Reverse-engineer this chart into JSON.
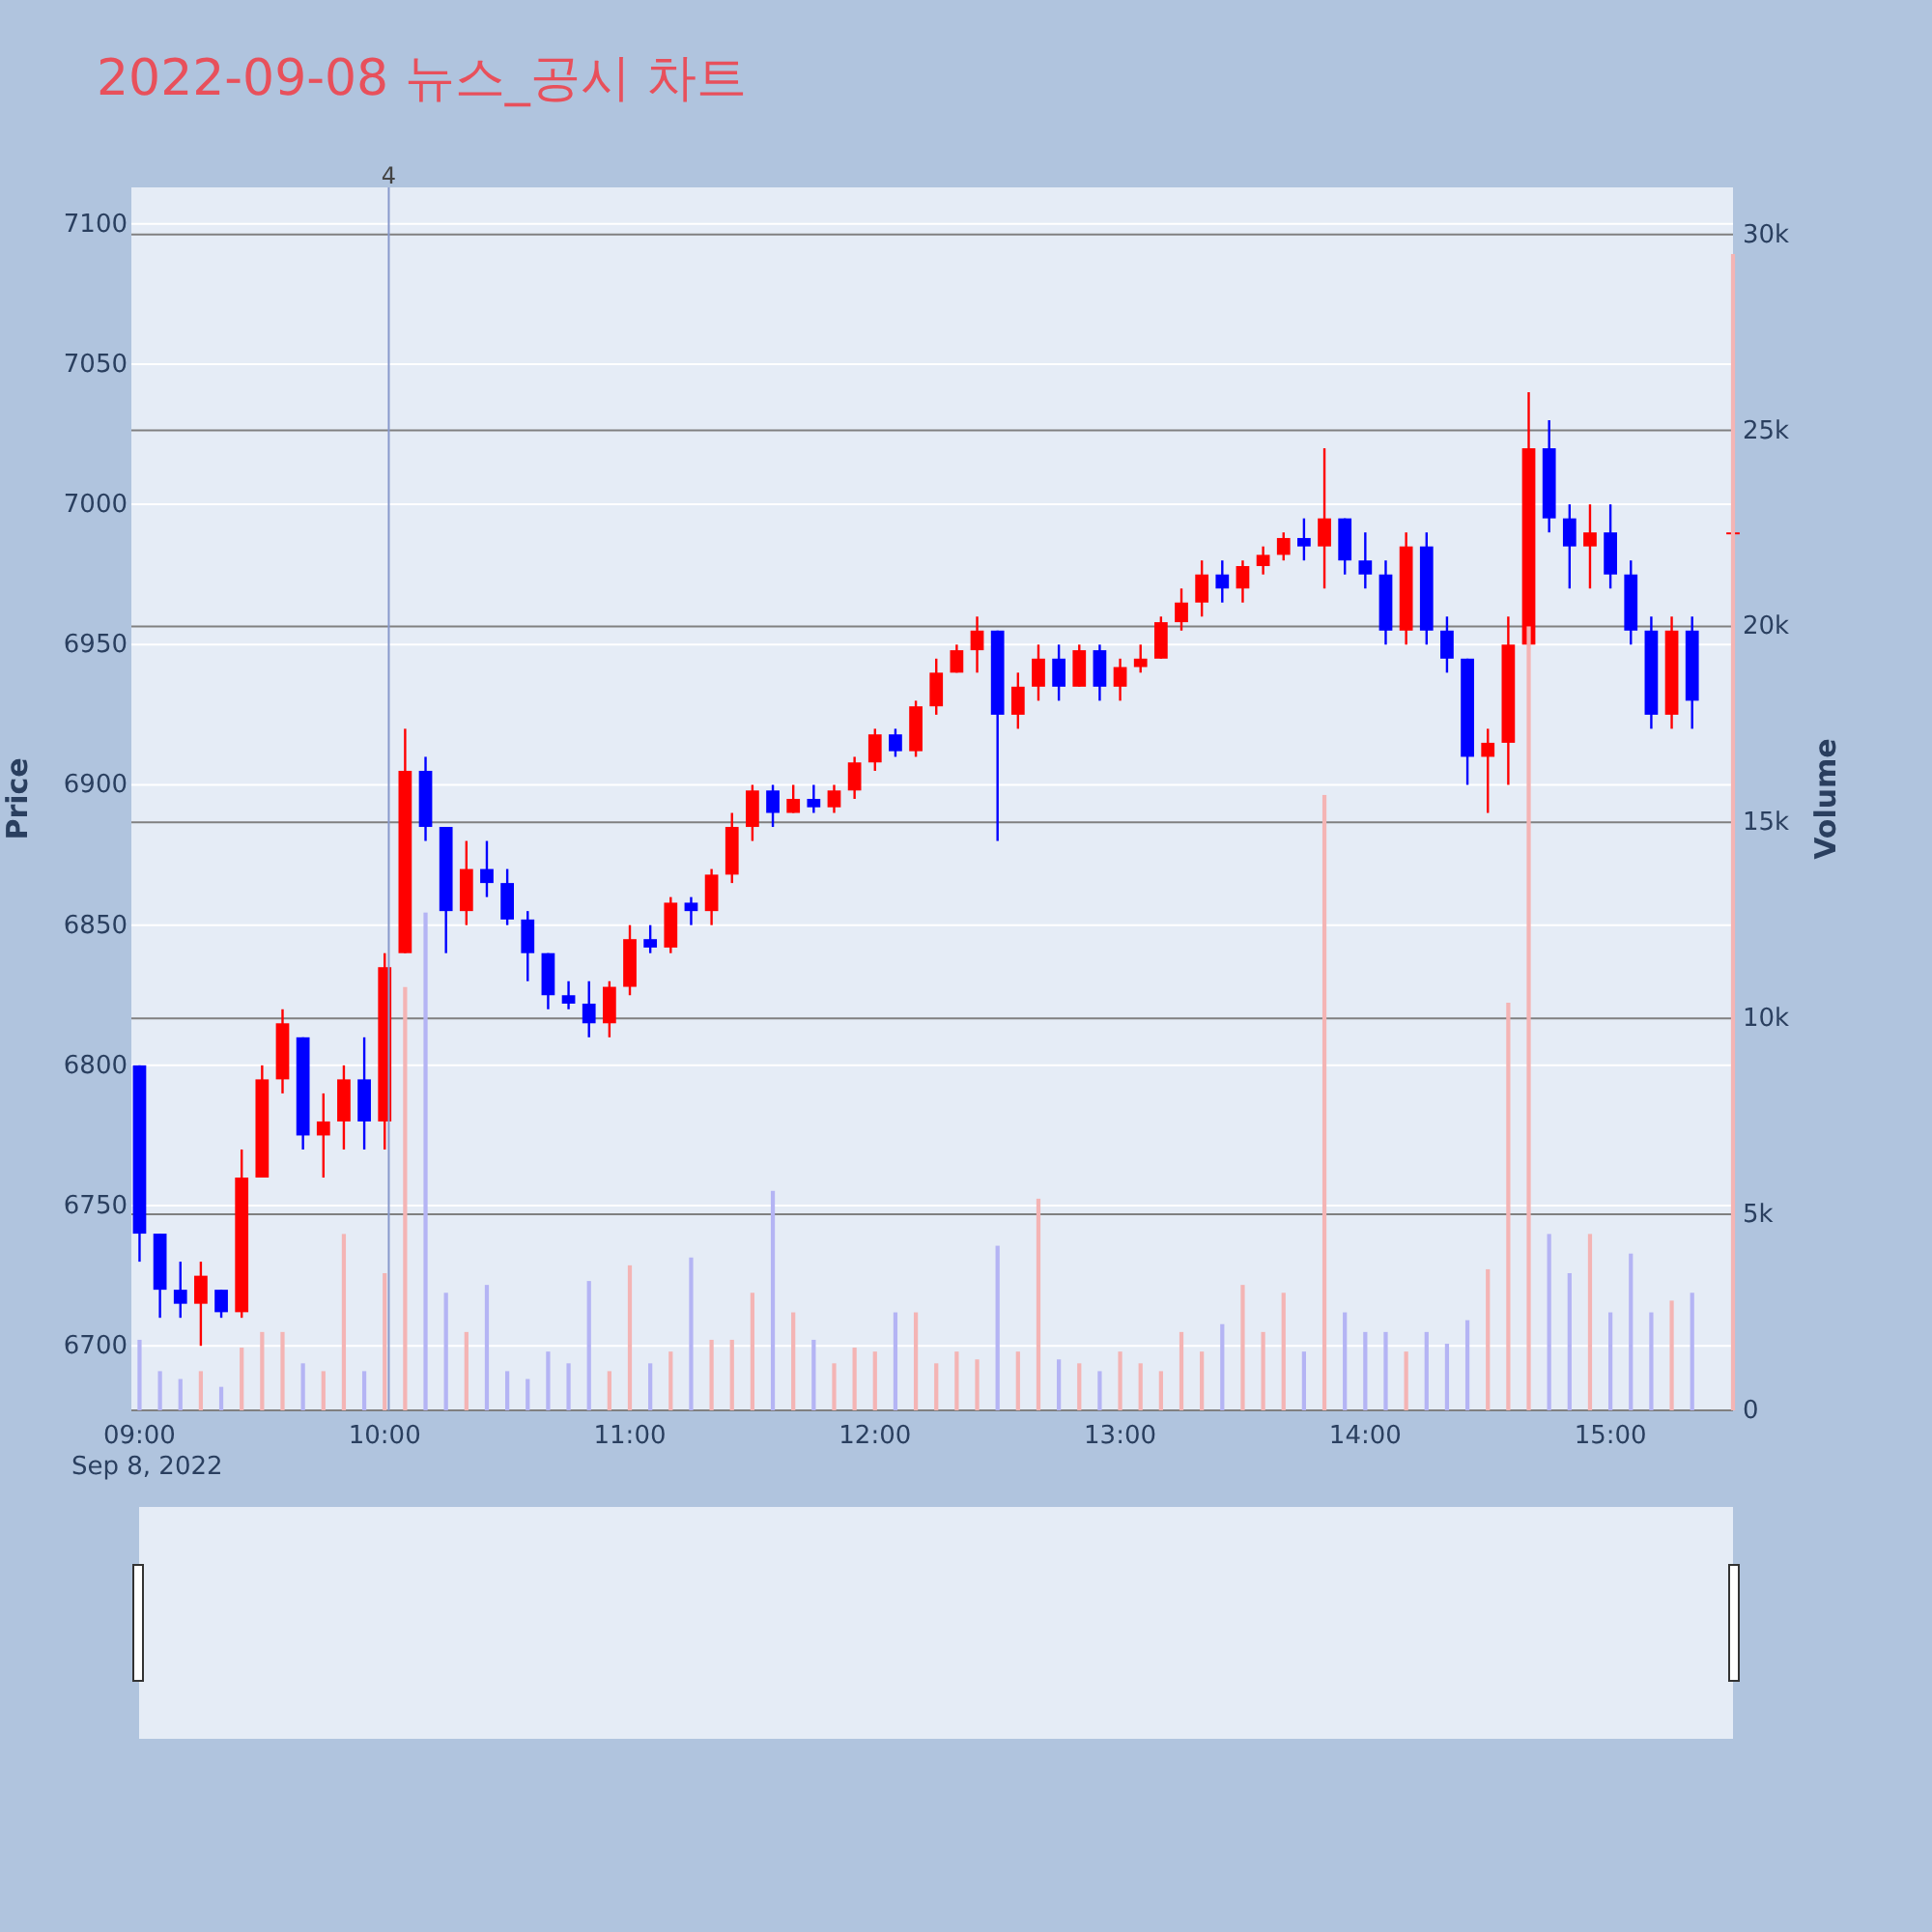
{
  "chart_data": {
    "type": "candlestick",
    "title": "2022-09-08 뉴스_공시 차트",
    "ylabel": "Price",
    "y2label": "Volume",
    "annotations": [
      "Sep 8, 2022"
    ],
    "x": [
      "2022-09-08T09:00",
      "2022-09-08T09:05",
      "2022-09-08T09:10",
      "2022-09-08T09:15",
      "2022-09-08T09:20",
      "2022-09-08T09:25",
      "2022-09-08T09:30",
      "2022-09-08T09:35",
      "2022-09-08T09:40",
      "2022-09-08T09:45",
      "2022-09-08T09:50",
      "2022-09-08T09:55",
      "2022-09-08T10:00",
      "2022-09-08T10:05",
      "2022-09-08T10:10",
      "2022-09-08T10:15",
      "2022-09-08T10:20",
      "2022-09-08T10:25",
      "2022-09-08T10:30",
      "2022-09-08T10:35",
      "2022-09-08T10:40",
      "2022-09-08T10:45",
      "2022-09-08T10:50",
      "2022-09-08T10:55",
      "2022-09-08T11:00",
      "2022-09-08T11:05",
      "2022-09-08T11:10",
      "2022-09-08T11:15",
      "2022-09-08T11:20",
      "2022-09-08T11:25",
      "2022-09-08T11:30",
      "2022-09-08T11:35",
      "2022-09-08T11:40",
      "2022-09-08T11:45",
      "2022-09-08T11:50",
      "2022-09-08T11:55",
      "2022-09-08T12:00",
      "2022-09-08T12:05",
      "2022-09-08T12:10",
      "2022-09-08T12:15",
      "2022-09-08T12:20",
      "2022-09-08T12:25",
      "2022-09-08T12:30",
      "2022-09-08T12:35",
      "2022-09-08T12:40",
      "2022-09-08T12:45",
      "2022-09-08T12:50",
      "2022-09-08T12:55",
      "2022-09-08T13:00",
      "2022-09-08T13:05",
      "2022-09-08T13:10",
      "2022-09-08T13:15",
      "2022-09-08T13:20",
      "2022-09-08T13:25",
      "2022-09-08T13:30",
      "2022-09-08T13:35",
      "2022-09-08T13:40",
      "2022-09-08T13:45",
      "2022-09-08T13:50",
      "2022-09-08T13:55",
      "2022-09-08T14:00",
      "2022-09-08T14:05",
      "2022-09-08T14:10",
      "2022-09-08T14:15",
      "2022-09-08T14:20",
      "2022-09-08T14:25",
      "2022-09-08T14:30",
      "2022-09-08T14:35",
      "2022-09-08T14:40",
      "2022-09-08T14:45",
      "2022-09-08T14:50",
      "2022-09-08T14:55",
      "2022-09-08T15:00",
      "2022-09-08T15:05",
      "2022-09-08T15:10",
      "2022-09-08T15:15",
      "2022-09-08T15:20",
      "2022-09-08T15:30"
    ],
    "xlim": [
      "2022-09-08T08:58",
      "2022-09-08T15:30"
    ],
    "xticks": [
      {
        "value": "2022-09-08T09:00",
        "label": "09:00"
      },
      {
        "value": "2022-09-08T10:00",
        "label": "10:00"
      },
      {
        "value": "2022-09-08T11:00",
        "label": "11:00"
      },
      {
        "value": "2022-09-08T12:00",
        "label": "12:00"
      },
      {
        "value": "2022-09-08T13:00",
        "label": "13:00"
      },
      {
        "value": "2022-09-08T14:00",
        "label": "14:00"
      },
      {
        "value": "2022-09-08T15:00",
        "label": "15:00"
      }
    ],
    "ylim": [
      6677,
      7113
    ],
    "yticks": [
      6700,
      6750,
      6800,
      6850,
      6900,
      6950,
      7000,
      7050,
      7100
    ],
    "y2lim": [
      0,
      31200
    ],
    "y2ticks": [
      {
        "value": 0,
        "label": "0"
      },
      {
        "value": 5000,
        "label": "5k"
      },
      {
        "value": 10000,
        "label": "10k"
      },
      {
        "value": 15000,
        "label": "15k"
      },
      {
        "value": 20000,
        "label": "20k"
      },
      {
        "value": 25000,
        "label": "25k"
      },
      {
        "value": 30000,
        "label": "30k"
      }
    ],
    "grid": true,
    "ref_lines": [
      {
        "axis": "x",
        "value": "2022-09-08T10:01",
        "label": "4",
        "color": "#8899cc"
      }
    ],
    "series": [
      {
        "type": "bar",
        "axis": "y2",
        "values": [
          1800,
          1000,
          800,
          1000,
          600,
          1600,
          2000,
          2000,
          1200,
          1000,
          4500,
          1000,
          3500,
          10800,
          12700,
          3000,
          2000,
          3200,
          1000,
          800,
          1500,
          1200,
          3300,
          1000,
          3700,
          1200,
          1500,
          3900,
          1800,
          1800,
          3000,
          5600,
          2500,
          1800,
          1200,
          1600,
          1500,
          2500,
          2500,
          1200,
          1500,
          1300,
          4200,
          1500,
          5400,
          1300,
          1200,
          1000,
          1500,
          1200,
          1000,
          2000,
          1500,
          2200,
          3200,
          2000,
          3000,
          1500,
          15700,
          2500,
          2000,
          2000,
          1500,
          2000,
          1700,
          2300,
          3600,
          10400,
          20000,
          4500,
          3500,
          4500,
          2500,
          4000,
          2500,
          2800,
          3000,
          29500
        ],
        "colors": [
          "#b4b4f4",
          "#b4b4f4",
          "#b4b4f4",
          "#f4b4b4",
          "#b4b4f4",
          "#f4b4b4",
          "#f4b4b4",
          "#f4b4b4",
          "#b4b4f4",
          "#f4b4b4",
          "#f4b4b4",
          "#b4b4f4",
          "#f4b4b4",
          "#f4b4b4",
          "#b4b4f4",
          "#b4b4f4",
          "#f4b4b4",
          "#b4b4f4",
          "#b4b4f4",
          "#b4b4f4",
          "#b4b4f4",
          "#b4b4f4",
          "#b4b4f4",
          "#f4b4b4",
          "#f4b4b4",
          "#b4b4f4",
          "#f4b4b4",
          "#b4b4f4",
          "#f4b4b4",
          "#f4b4b4",
          "#f4b4b4",
          "#b4b4f4",
          "#f4b4b4",
          "#b4b4f4",
          "#f4b4b4",
          "#f4b4b4",
          "#f4b4b4",
          "#b4b4f4",
          "#f4b4b4",
          "#f4b4b4",
          "#f4b4b4",
          "#f4b4b4",
          "#b4b4f4",
          "#f4b4b4",
          "#f4b4b4",
          "#b4b4f4",
          "#f4b4b4",
          "#b4b4f4",
          "#f4b4b4",
          "#f4b4b4",
          "#f4b4b4",
          "#f4b4b4",
          "#f4b4b4",
          "#b4b4f4",
          "#f4b4b4",
          "#f4b4b4",
          "#f4b4b4",
          "#b4b4f4",
          "#f4b4b4",
          "#b4b4f4",
          "#b4b4f4",
          "#b4b4f4",
          "#f4b4b4",
          "#b4b4f4",
          "#b4b4f4",
          "#b4b4f4",
          "#f4b4b4",
          "#f4b4b4",
          "#f4b4b4",
          "#b4b4f4",
          "#b4b4f4",
          "#f4b4b4",
          "#b4b4f4",
          "#b4b4f4",
          "#b4b4f4",
          "#f4b4b4",
          "#b4b4f4",
          "#f4b4b4"
        ]
      },
      {
        "ohlc": [
          [
            6800,
            6800,
            6730,
            6740
          ],
          [
            6740,
            6740,
            6710,
            6720
          ],
          [
            6720,
            6730,
            6710,
            6715
          ],
          [
            6715,
            6730,
            6700,
            6725
          ],
          [
            6720,
            6720,
            6710,
            6712
          ],
          [
            6712,
            6770,
            6710,
            6760
          ],
          [
            6760,
            6800,
            6760,
            6795
          ],
          [
            6795,
            6820,
            6790,
            6815
          ],
          [
            6810,
            6810,
            6770,
            6775
          ],
          [
            6775,
            6790,
            6760,
            6780
          ],
          [
            6780,
            6800,
            6770,
            6795
          ],
          [
            6795,
            6810,
            6770,
            6780
          ],
          [
            6780,
            6840,
            6770,
            6835
          ],
          [
            6840,
            6920,
            6840,
            6905
          ],
          [
            6905,
            6910,
            6880,
            6885
          ],
          [
            6885,
            6885,
            6840,
            6855
          ],
          [
            6855,
            6880,
            6850,
            6870
          ],
          [
            6870,
            6880,
            6860,
            6865
          ],
          [
            6865,
            6870,
            6850,
            6852
          ],
          [
            6852,
            6855,
            6830,
            6840
          ],
          [
            6840,
            6840,
            6820,
            6825
          ],
          [
            6825,
            6830,
            6820,
            6822
          ],
          [
            6822,
            6830,
            6810,
            6815
          ],
          [
            6815,
            6830,
            6810,
            6828
          ],
          [
            6828,
            6850,
            6825,
            6845
          ],
          [
            6845,
            6850,
            6840,
            6842
          ],
          [
            6842,
            6860,
            6840,
            6858
          ],
          [
            6858,
            6860,
            6850,
            6855
          ],
          [
            6855,
            6870,
            6850,
            6868
          ],
          [
            6868,
            6890,
            6865,
            6885
          ],
          [
            6885,
            6900,
            6880,
            6898
          ],
          [
            6898,
            6900,
            6885,
            6890
          ],
          [
            6890,
            6900,
            6890,
            6895
          ],
          [
            6895,
            6900,
            6890,
            6892
          ],
          [
            6892,
            6900,
            6890,
            6898
          ],
          [
            6898,
            6910,
            6895,
            6908
          ],
          [
            6908,
            6920,
            6905,
            6918
          ],
          [
            6918,
            6920,
            6910,
            6912
          ],
          [
            6912,
            6930,
            6910,
            6928
          ],
          [
            6928,
            6945,
            6925,
            6940
          ],
          [
            6940,
            6950,
            6940,
            6948
          ],
          [
            6948,
            6960,
            6940,
            6955
          ],
          [
            6955,
            6955,
            6880,
            6925
          ],
          [
            6925,
            6940,
            6920,
            6935
          ],
          [
            6935,
            6950,
            6930,
            6945
          ],
          [
            6945,
            6950,
            6930,
            6935
          ],
          [
            6935,
            6950,
            6935,
            6948
          ],
          [
            6948,
            6950,
            6930,
            6935
          ],
          [
            6935,
            6945,
            6930,
            6942
          ],
          [
            6942,
            6950,
            6940,
            6945
          ],
          [
            6945,
            6960,
            6945,
            6958
          ],
          [
            6958,
            6970,
            6955,
            6965
          ],
          [
            6965,
            6980,
            6960,
            6975
          ],
          [
            6975,
            6980,
            6965,
            6970
          ],
          [
            6970,
            6980,
            6965,
            6978
          ],
          [
            6978,
            6985,
            6975,
            6982
          ],
          [
            6982,
            6990,
            6980,
            6988
          ],
          [
            6988,
            6995,
            6980,
            6985
          ],
          [
            6985,
            7020,
            6970,
            6995
          ],
          [
            6995,
            6995,
            6975,
            6980
          ],
          [
            6980,
            6990,
            6970,
            6975
          ],
          [
            6975,
            6980,
            6950,
            6955
          ],
          [
            6955,
            6990,
            6950,
            6985
          ],
          [
            6985,
            6990,
            6950,
            6955
          ],
          [
            6955,
            6960,
            6940,
            6945
          ],
          [
            6945,
            6945,
            6900,
            6910
          ],
          [
            6910,
            6920,
            6890,
            6915
          ],
          [
            6915,
            6960,
            6900,
            6950
          ],
          [
            6950,
            7040,
            6950,
            7020
          ],
          [
            7020,
            7030,
            6990,
            6995
          ],
          [
            6995,
            7000,
            6970,
            6985
          ],
          [
            6985,
            7000,
            6970,
            6990
          ],
          [
            6990,
            7000,
            6970,
            6975
          ],
          [
            6975,
            6980,
            6950,
            6955
          ],
          [
            6955,
            6960,
            6920,
            6925
          ],
          [
            6925,
            6960,
            6920,
            6955
          ],
          [
            6955,
            6960,
            6920,
            6930
          ],
          [
            6990,
            6990,
            6990,
            6990
          ]
        ],
        "colors": [
          "#0000ff",
          "#0000ff",
          "#0000ff",
          "#ff0000",
          "#0000ff",
          "#ff0000",
          "#ff0000",
          "#ff0000",
          "#0000ff",
          "#ff0000",
          "#ff0000",
          "#0000ff",
          "#ff0000",
          "#ff0000",
          "#0000ff",
          "#0000ff",
          "#ff0000",
          "#0000ff",
          "#0000ff",
          "#0000ff",
          "#0000ff",
          "#0000ff",
          "#0000ff",
          "#ff0000",
          "#ff0000",
          "#0000ff",
          "#ff0000",
          "#0000ff",
          "#ff0000",
          "#ff0000",
          "#ff0000",
          "#0000ff",
          "#ff0000",
          "#0000ff",
          "#ff0000",
          "#ff0000",
          "#ff0000",
          "#0000ff",
          "#ff0000",
          "#ff0000",
          "#ff0000",
          "#ff0000",
          "#0000ff",
          "#ff0000",
          "#ff0000",
          "#0000ff",
          "#ff0000",
          "#0000ff",
          "#ff0000",
          "#ff0000",
          "#ff0000",
          "#ff0000",
          "#ff0000",
          "#0000ff",
          "#ff0000",
          "#ff0000",
          "#ff0000",
          "#0000ff",
          "#ff0000",
          "#0000ff",
          "#0000ff",
          "#0000ff",
          "#ff0000",
          "#0000ff",
          "#0000ff",
          "#0000ff",
          "#ff0000",
          "#ff0000",
          "#ff0000",
          "#0000ff",
          "#0000ff",
          "#ff0000",
          "#0000ff",
          "#0000ff",
          "#0000ff",
          "#ff0000",
          "#0000ff",
          "#ff0000"
        ]
      }
    ]
  }
}
